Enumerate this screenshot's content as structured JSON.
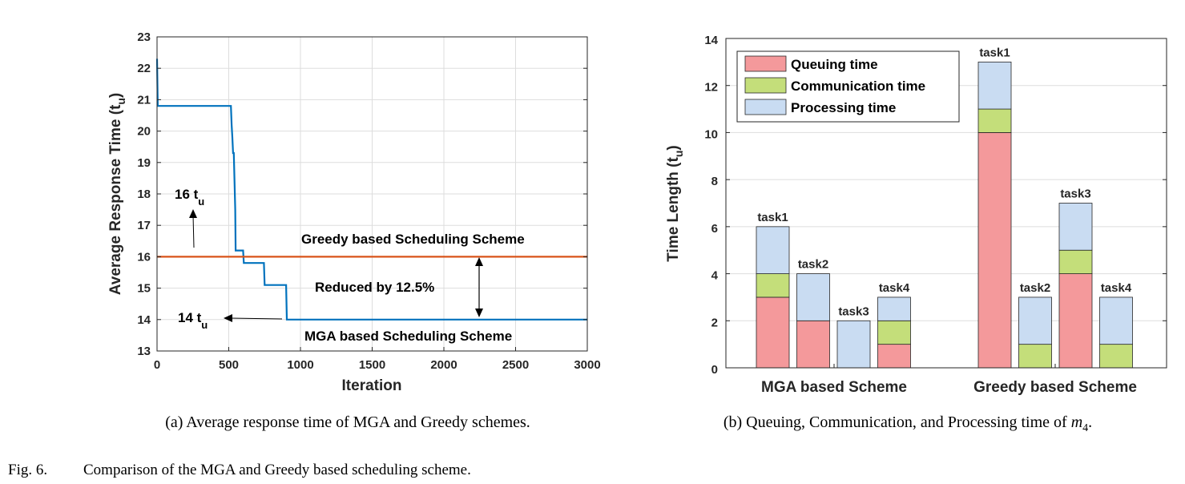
{
  "chart_data": [
    {
      "type": "line",
      "xlabel": "Iteration",
      "ylabel": "Average Response Time (t",
      "ylabel_sub": "u",
      "xlim": [
        0,
        3000
      ],
      "ylim": [
        13,
        23
      ],
      "xticks": [
        "0",
        "500",
        "1000",
        "1500",
        "2000",
        "2500",
        "3000"
      ],
      "yticks": [
        "13",
        "14",
        "15",
        "16",
        "17",
        "18",
        "19",
        "20",
        "21",
        "22",
        "23"
      ],
      "grid": true,
      "series": [
        {
          "name": "MGA based Scheduling Scheme",
          "color": "#0072BD",
          "points": [
            [
              0,
              22.3
            ],
            [
              5,
              20.8
            ],
            [
              515,
              20.8
            ],
            [
              520,
              20.2
            ],
            [
              525,
              19.8
            ],
            [
              530,
              19.3
            ],
            [
              535,
              19.3
            ],
            [
              540,
              18.4
            ],
            [
              545,
              17.5
            ],
            [
              548,
              16.2
            ],
            [
              600,
              16.2
            ],
            [
              605,
              15.8
            ],
            [
              745,
              15.8
            ],
            [
              750,
              15.1
            ],
            [
              900,
              15.1
            ],
            [
              905,
              14.0
            ],
            [
              3000,
              14.0
            ]
          ]
        },
        {
          "name": "Greedy based Scheduling Scheme",
          "color": "#D95319",
          "points": [
            [
              0,
              16.0
            ],
            [
              3000,
              16.0
            ]
          ]
        }
      ],
      "annotations": {
        "greedy_level": "16 t",
        "greedy_level_sub": "u",
        "mga_level": "14 t",
        "mga_level_sub": "u",
        "reduction": "Reduced by 12.5%",
        "greedy_label": "Greedy based Scheduling Scheme",
        "mga_label": "MGA based Scheduling Scheme"
      },
      "caption": "(a) Average response time of MGA and Greedy schemes."
    },
    {
      "type": "bar",
      "stacked": true,
      "ylabel": "Time Length (t",
      "ylabel_sub": "u",
      "ylim": [
        0,
        14
      ],
      "yticks": [
        "0",
        "2",
        "4",
        "6",
        "8",
        "10",
        "12",
        "14"
      ],
      "grid": true,
      "legend_position": "top-left",
      "series_colors": {
        "Queuing time": "#F4999B",
        "Communication time": "#C4DE7A",
        "Processing time": "#C9DCF2"
      },
      "series": [
        {
          "name": "Queuing time",
          "color": "#F4999B"
        },
        {
          "name": "Communication time",
          "color": "#C4DE7A"
        },
        {
          "name": "Processing time",
          "color": "#C9DCF2"
        }
      ],
      "groups": [
        {
          "name": "MGA based Scheme",
          "bars": [
            {
              "label": "task1",
              "queuing": 3,
              "communication": 1,
              "processing": 2
            },
            {
              "label": "task2",
              "queuing": 2,
              "communication": 0,
              "processing": 2
            },
            {
              "label": "task3",
              "queuing": 0,
              "communication": 0,
              "processing": 2
            },
            {
              "label": "task4",
              "queuing": 1,
              "communication": 1,
              "processing": 1
            }
          ]
        },
        {
          "name": "Greedy based Scheme",
          "bars": [
            {
              "label": "task1",
              "queuing": 10,
              "communication": 1,
              "processing": 2
            },
            {
              "label": "task2",
              "queuing": 0,
              "communication": 1,
              "processing": 2
            },
            {
              "label": "task3",
              "queuing": 4,
              "communication": 1,
              "processing": 2
            },
            {
              "label": "task4",
              "queuing": 0,
              "communication": 1,
              "processing": 2
            }
          ]
        }
      ],
      "caption_prefix": "(b) Queuing, Communication, and Processing time of ",
      "caption_math": "m",
      "caption_math_sub": "4",
      "caption_suffix": "."
    }
  ],
  "figure_caption": {
    "label": "Fig. 6.",
    "text": "Comparison of the MGA and Greedy based scheduling scheme."
  }
}
